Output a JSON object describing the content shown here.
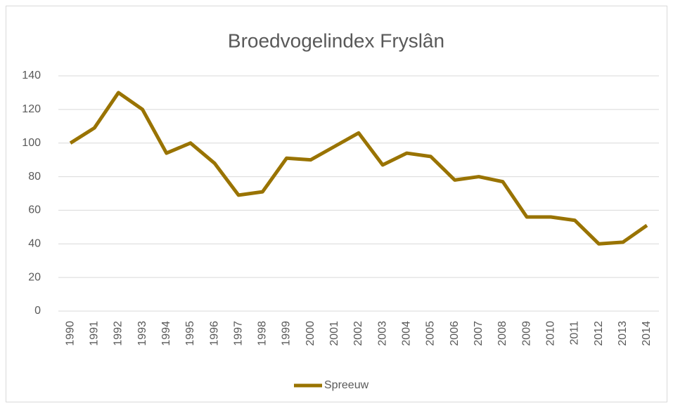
{
  "chart_data": {
    "type": "line",
    "title": "Broedvogelindex Fryslân",
    "categories": [
      "1990",
      "1991",
      "1992",
      "1993",
      "1994",
      "1995",
      "1996",
      "1997",
      "1998",
      "1999",
      "2000",
      "2001",
      "2002",
      "2003",
      "2004",
      "2005",
      "2006",
      "2007",
      "2008",
      "2009",
      "2010",
      "2011",
      "2012",
      "2013",
      "2014"
    ],
    "series": [
      {
        "name": "Spreeuw",
        "color": "#997300",
        "values": [
          100,
          109,
          130,
          120,
          94,
          100,
          88,
          69,
          71,
          91,
          90,
          98,
          106,
          87,
          94,
          92,
          78,
          80,
          77,
          56,
          56,
          54,
          40,
          41,
          51
        ]
      }
    ],
    "ylim": [
      0,
      140
    ],
    "yticks": [
      0,
      20,
      40,
      60,
      80,
      100,
      120,
      140
    ],
    "grid": true,
    "legend": "bottom"
  }
}
